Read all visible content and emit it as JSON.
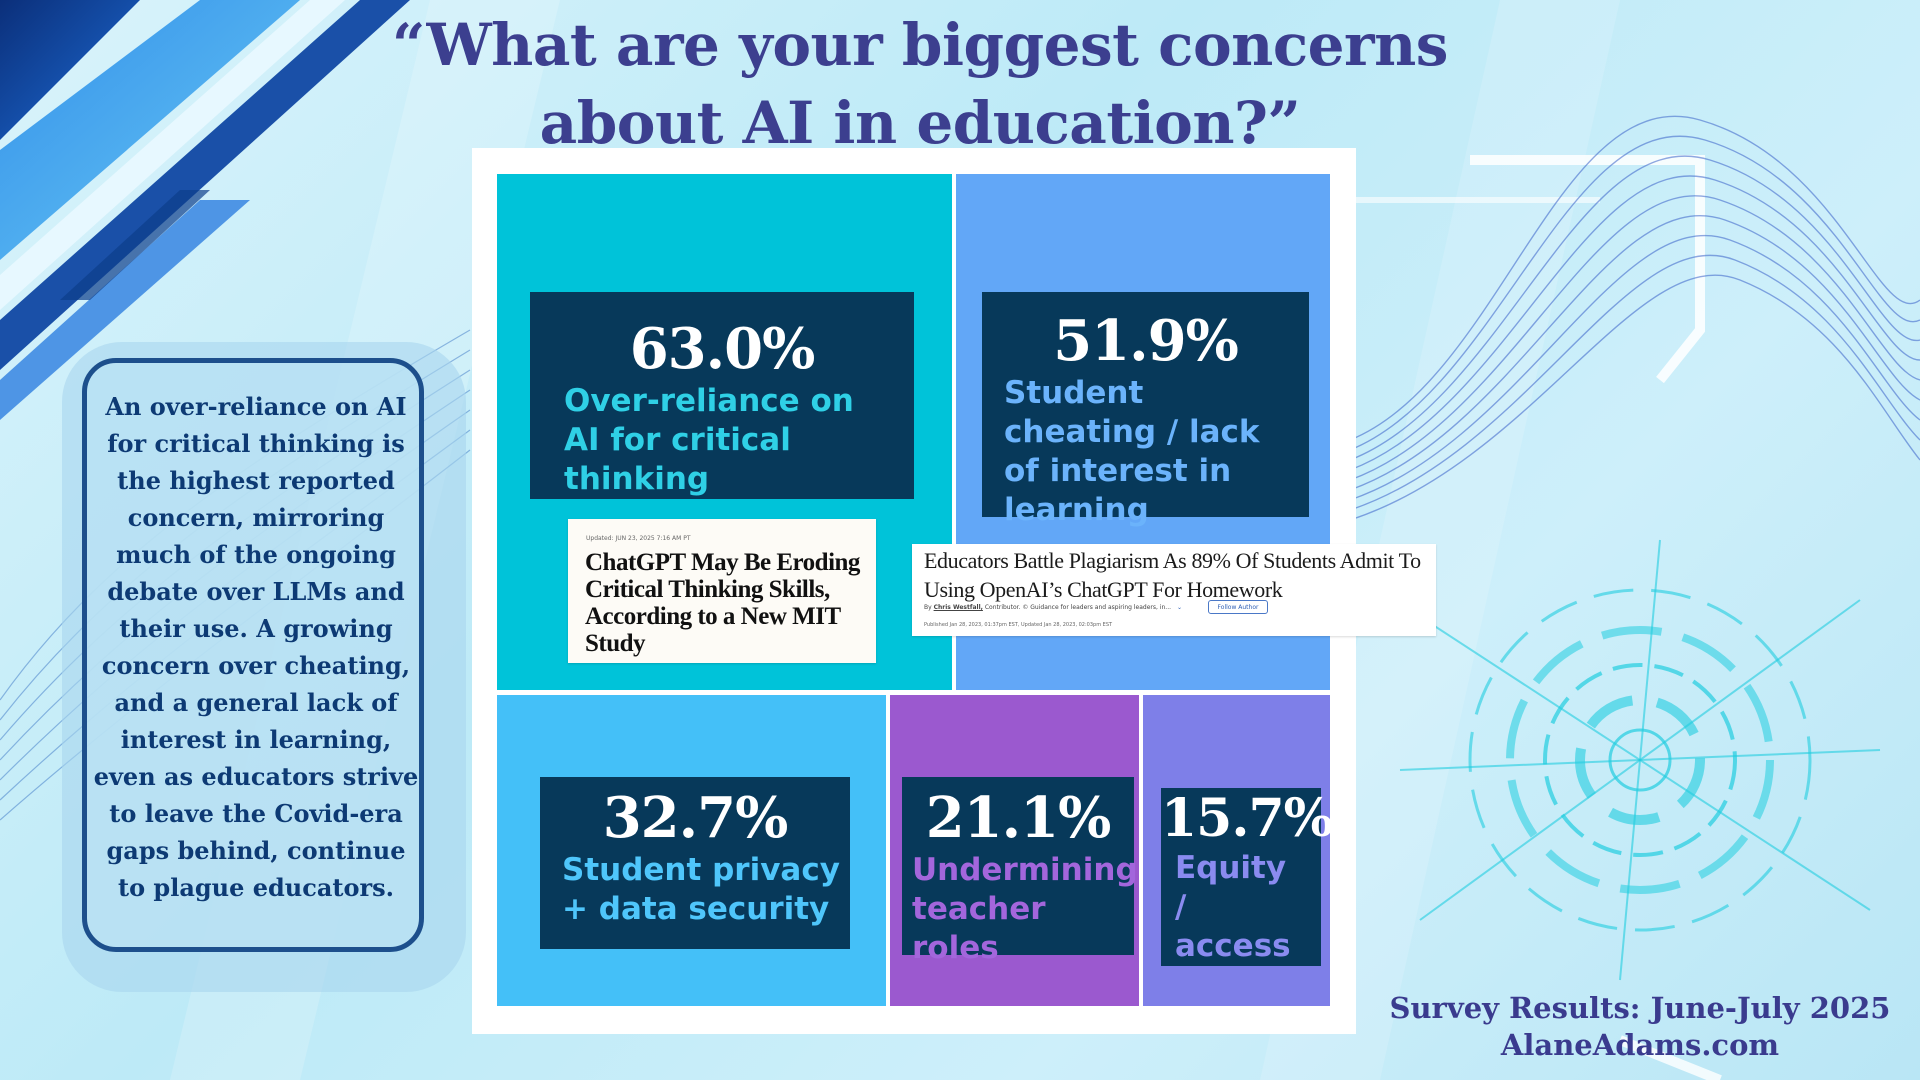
{
  "title_line1": "“What are your biggest concerns",
  "title_line2": "about AI in education?”",
  "sidebar_text": "An over-reliance on AI for critical thinking is the highest reported concern, mirroring much of the ongoing debate over LLMs and their use. A growing concern over cheating, and a general lack of interest in learning, even as educators strive to leave the Covid-era gaps behind, continue to plague educators.",
  "clipping_1": {
    "updated": "Updated: JUN 23, 2025 7:16 AM PT",
    "headline": "ChatGPT May Be Eroding Critical Thinking Skills, According to a New MIT Study"
  },
  "clipping_2": {
    "headline": "Educators Battle Plagiarism As 89% Of Students Admit To Using OpenAI’s ChatGPT For Homework",
    "by_prefix": "By",
    "author": "Chris Westfall,",
    "contributor": "Contributor. © Guidance for leaders and aspiring leaders, in...",
    "follow": "Follow Author",
    "published": "Published Jan 28, 2023, 01:37pm EST, Updated Jan 28, 2023, 02:03pm EST"
  },
  "footer_line1": "Survey Results: June-July 2025",
  "footer_line2": "AlaneAdams.com",
  "chart_data": {
    "type": "treemap",
    "unit": "%",
    "items": [
      {
        "label": "Over-reliance on AI for critical thinking",
        "value": 63.0,
        "value_text": "63.0%",
        "color": "#00c3d9",
        "text_color": "#2fd0e6"
      },
      {
        "label": "Student cheating / lack of interest in learning",
        "value": 51.9,
        "value_text": "51.9%",
        "color": "#62a7f7",
        "text_color": "#6bb3fb"
      },
      {
        "label": "Student privacy + data security",
        "value": 32.7,
        "value_text": "32.7%",
        "color": "#44c0f8",
        "text_color": "#4fc6fb"
      },
      {
        "label": "Undermining teacher roles",
        "value": 21.1,
        "value_text": "21.1%",
        "color": "#9b59cf",
        "text_color": "#a366dc"
      },
      {
        "label": "Equity / access",
        "value": 15.7,
        "value_text": "15.7%",
        "color": "#7e7fe8",
        "text_color": "#8a8bf0"
      }
    ]
  }
}
